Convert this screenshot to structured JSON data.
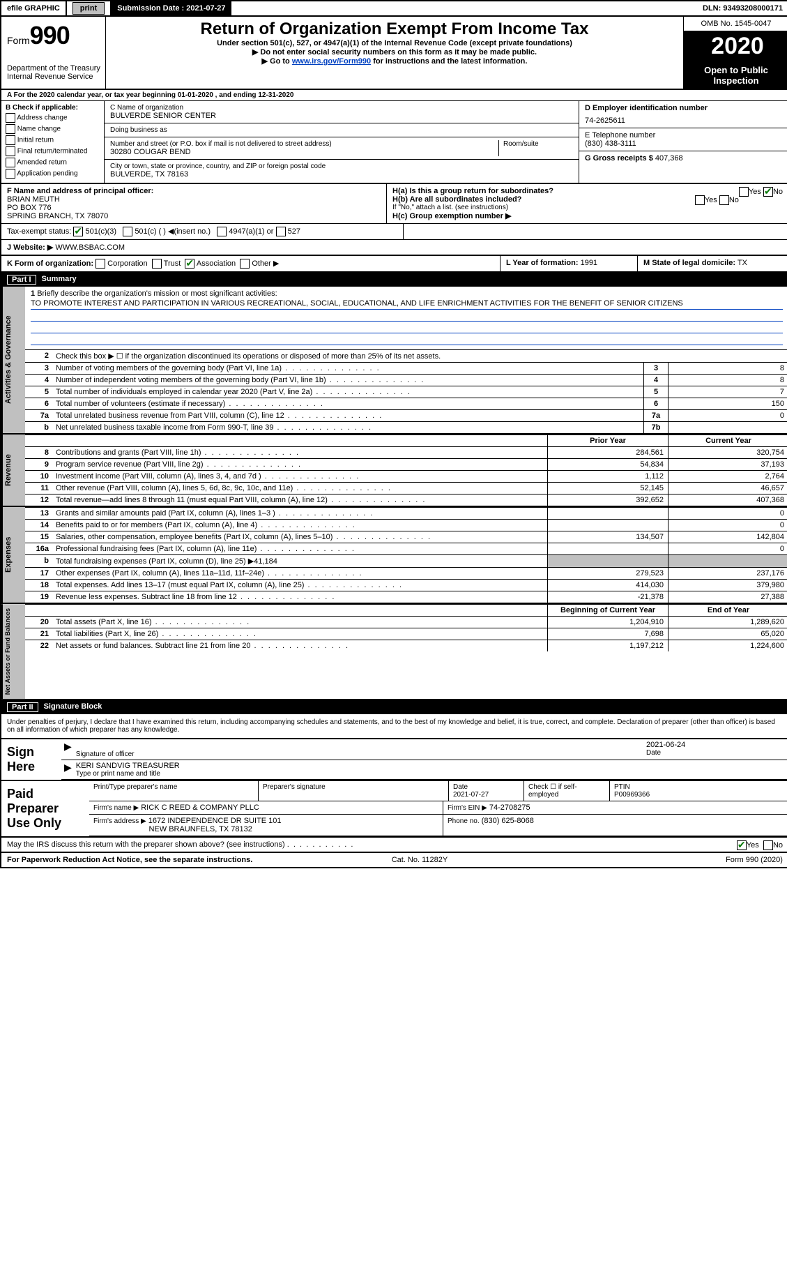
{
  "topbar": {
    "efile": "efile GRAPHIC",
    "print": "print",
    "submission_label": "Submission Date : 2021-07-27",
    "dln": "DLN: 93493208000171"
  },
  "header": {
    "form_word": "Form",
    "form_num": "990",
    "dept": "Department of the Treasury",
    "irs": "Internal Revenue Service",
    "title": "Return of Organization Exempt From Income Tax",
    "sub1": "Under section 501(c), 527, or 4947(a)(1) of the Internal Revenue Code (except private foundations)",
    "sub2": "▶ Do not enter social security numbers on this form as it may be made public.",
    "sub3_pre": "▶ Go to ",
    "sub3_link": "www.irs.gov/Form990",
    "sub3_post": " for instructions and the latest information.",
    "omb": "OMB No. 1545-0047",
    "year": "2020",
    "pub": "Open to Public Inspection"
  },
  "rowA": "A For the 2020 calendar year, or tax year beginning 01-01-2020    , and ending 12-31-2020",
  "colB": {
    "hdr": "B Check if applicable:",
    "items": [
      "Address change",
      "Name change",
      "Initial return",
      "Final return/terminated",
      "Amended return",
      "Application pending"
    ]
  },
  "colC": {
    "name_lbl": "C Name of organization",
    "name": "BULVERDE SENIOR CENTER",
    "dba_lbl": "Doing business as",
    "addr_lbl": "Number and street (or P.O. box if mail is not delivered to street address)",
    "room_lbl": "Room/suite",
    "addr": "30280 COUGAR BEND",
    "city_lbl": "City or town, state or province, country, and ZIP or foreign postal code",
    "city": "BULVERDE, TX  78163"
  },
  "colD": {
    "lbl": "D Employer identification number",
    "val": "74-2625611"
  },
  "colE": {
    "lbl": "E Telephone number",
    "val": "(830) 438-3111"
  },
  "colG": {
    "lbl": "G Gross receipts $",
    "val": "407,368"
  },
  "rowF": {
    "lbl": "F  Name and address of principal officer:",
    "name": "BRIAN MEUTH",
    "addr1": "PO BOX 776",
    "addr2": "SPRING BRANCH, TX  78070"
  },
  "rowH": {
    "ha": "H(a)  Is this a group return for subordinates?",
    "hb_lbl": "H(b)  Are all subordinates included?",
    "hb_note": "If \"No,\" attach a list. (see instructions)",
    "hc": "H(c)  Group exemption number ▶",
    "yes": "Yes",
    "no": "No"
  },
  "taxexempt": {
    "lbl": "Tax-exempt status:",
    "c3": "501(c)(3)",
    "c": "501(c) (  ) ◀(insert no.)",
    "a1": "4947(a)(1) or",
    "s527": "527"
  },
  "rowJ": {
    "lbl": "J   Website: ▶",
    "val": "WWW.BSBAC.COM"
  },
  "rowK": {
    "lbl": "K Form of organization:",
    "corp": "Corporation",
    "trust": "Trust",
    "assoc": "Association",
    "other": "Other ▶"
  },
  "rowL": {
    "lbl": "L Year of formation:",
    "val": "1991"
  },
  "rowM": {
    "lbl": "M State of legal domicile:",
    "val": "TX"
  },
  "partI": {
    "num": "Part I",
    "title": "Summary"
  },
  "mission": {
    "num": "1",
    "lbl": "Briefly describe the organization's mission or most significant activities:",
    "text": "TO PROMOTE INTEREST AND PARTICIPATION IN VARIOUS RECREATIONAL, SOCIAL, EDUCATIONAL, AND LIFE ENRICHMENT ACTIVITIES FOR THE BENEFIT OF SENIOR CITIZENS"
  },
  "sideLabels": {
    "ag": "Activities & Governance",
    "rev": "Revenue",
    "exp": "Expenses",
    "na": "Net Assets or Fund Balances"
  },
  "ag_lines": [
    {
      "n": "2",
      "t": "Check this box ▶ ☐  if the organization discontinued its operations or disposed of more than 25% of its net assets."
    },
    {
      "n": "3",
      "t": "Number of voting members of the governing body (Part VI, line 1a)",
      "box": "3",
      "v": "8"
    },
    {
      "n": "4",
      "t": "Number of independent voting members of the governing body (Part VI, line 1b)",
      "box": "4",
      "v": "8"
    },
    {
      "n": "5",
      "t": "Total number of individuals employed in calendar year 2020 (Part V, line 2a)",
      "box": "5",
      "v": "7"
    },
    {
      "n": "6",
      "t": "Total number of volunteers (estimate if necessary)",
      "box": "6",
      "v": "150"
    },
    {
      "n": "7a",
      "t": "Total unrelated business revenue from Part VIII, column (C), line 12",
      "box": "7a",
      "v": "0"
    },
    {
      "n": "b",
      "t": "Net unrelated business taxable income from Form 990-T, line 39",
      "box": "7b",
      "v": ""
    }
  ],
  "col_hdrs": {
    "py": "Prior Year",
    "cy": "Current Year"
  },
  "rev_lines": [
    {
      "n": "8",
      "t": "Contributions and grants (Part VIII, line 1h)",
      "py": "284,561",
      "cy": "320,754"
    },
    {
      "n": "9",
      "t": "Program service revenue (Part VIII, line 2g)",
      "py": "54,834",
      "cy": "37,193"
    },
    {
      "n": "10",
      "t": "Investment income (Part VIII, column (A), lines 3, 4, and 7d )",
      "py": "1,112",
      "cy": "2,764"
    },
    {
      "n": "11",
      "t": "Other revenue (Part VIII, column (A), lines 5, 6d, 8c, 9c, 10c, and 11e)",
      "py": "52,145",
      "cy": "46,657"
    },
    {
      "n": "12",
      "t": "Total revenue—add lines 8 through 11 (must equal Part VIII, column (A), line 12)",
      "py": "392,652",
      "cy": "407,368"
    }
  ],
  "exp_lines": [
    {
      "n": "13",
      "t": "Grants and similar amounts paid (Part IX, column (A), lines 1–3 )",
      "py": "",
      "cy": "0"
    },
    {
      "n": "14",
      "t": "Benefits paid to or for members (Part IX, column (A), line 4)",
      "py": "",
      "cy": "0"
    },
    {
      "n": "15",
      "t": "Salaries, other compensation, employee benefits (Part IX, column (A), lines 5–10)",
      "py": "134,507",
      "cy": "142,804"
    },
    {
      "n": "16a",
      "t": "Professional fundraising fees (Part IX, column (A), line 11e)",
      "py": "",
      "cy": "0"
    },
    {
      "n": "b",
      "t": "Total fundraising expenses (Part IX, column (D), line 25) ▶41,184",
      "shade": true
    },
    {
      "n": "17",
      "t": "Other expenses (Part IX, column (A), lines 11a–11d, 11f–24e)",
      "py": "279,523",
      "cy": "237,176"
    },
    {
      "n": "18",
      "t": "Total expenses. Add lines 13–17 (must equal Part IX, column (A), line 25)",
      "py": "414,030",
      "cy": "379,980"
    },
    {
      "n": "19",
      "t": "Revenue less expenses. Subtract line 18 from line 12",
      "py": "-21,378",
      "cy": "27,388"
    }
  ],
  "na_hdrs": {
    "b": "Beginning of Current Year",
    "e": "End of Year"
  },
  "na_lines": [
    {
      "n": "20",
      "t": "Total assets (Part X, line 16)",
      "b": "1,204,910",
      "e": "1,289,620"
    },
    {
      "n": "21",
      "t": "Total liabilities (Part X, line 26)",
      "b": "7,698",
      "e": "65,020"
    },
    {
      "n": "22",
      "t": "Net assets or fund balances. Subtract line 21 from line 20",
      "b": "1,197,212",
      "e": "1,224,600"
    }
  ],
  "partII": {
    "num": "Part II",
    "title": "Signature Block"
  },
  "penalty": "Under penalties of perjury, I declare that I have examined this return, including accompanying schedules and statements, and to the best of my knowledge and belief, it is true, correct, and complete. Declaration of preparer (other than officer) is based on all information of which preparer has any knowledge.",
  "sign": {
    "lbl": "Sign Here",
    "sig_lbl": "Signature of officer",
    "date_lbl": "Date",
    "date": "2021-06-24",
    "name": "KERI SANDVIG  TREASURER",
    "name_lbl": "Type or print name and title"
  },
  "paid": {
    "lbl": "Paid Preparer Use Only",
    "h1": "Print/Type preparer's name",
    "h2": "Preparer's signature",
    "h3": "Date",
    "h3v": "2021-07-27",
    "h4": "Check ☐ if self-employed",
    "h5": "PTIN",
    "h5v": "P00969366",
    "firm_lbl": "Firm's name    ▶",
    "firm": "RICK C REED & COMPANY PLLC",
    "ein_lbl": "Firm's EIN ▶",
    "ein": "74-2708275",
    "addr_lbl": "Firm's address ▶",
    "addr1": "1672 INDEPENDENCE DR SUITE 101",
    "addr2": "NEW BRAUNFELS, TX  78132",
    "ph_lbl": "Phone no.",
    "ph": "(830) 625-8068"
  },
  "discuss": {
    "q": "May the IRS discuss this return with the preparer shown above? (see instructions)",
    "yes": "Yes",
    "no": "No"
  },
  "footer": {
    "l": "For Paperwork Reduction Act Notice, see the separate instructions.",
    "m": "Cat. No. 11282Y",
    "r": "Form 990 (2020)"
  }
}
